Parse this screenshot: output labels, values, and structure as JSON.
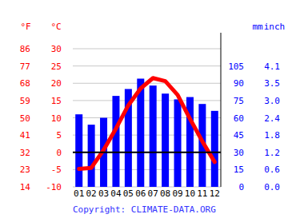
{
  "chart_data": {
    "type": "bar",
    "categories": [
      "01",
      "02",
      "03",
      "04",
      "05",
      "06",
      "07",
      "08",
      "09",
      "10",
      "11",
      "12"
    ],
    "series": [
      {
        "type": "bar",
        "color": "#0000ff",
        "axis": "y2",
        "values": [
          63,
          54,
          60,
          79,
          85,
          94,
          88,
          81,
          76,
          78,
          72,
          66
        ]
      },
      {
        "type": "line",
        "color": "#ff0000",
        "axis": "y",
        "values": [
          -4.8,
          -4.5,
          0.7,
          6.9,
          13.6,
          18.5,
          21.5,
          20.6,
          16.6,
          9.7,
          3.2,
          -2.8
        ]
      }
    ],
    "y_label": "°C",
    "ylim": [
      -10,
      30
    ],
    "yticks": [
      -10,
      -5,
      0,
      5,
      10,
      15,
      20,
      25,
      30
    ],
    "y_fahrenheit_label": "°F",
    "y_fahrenheit_ticks": [
      {
        "value": -10,
        "label": "14"
      },
      {
        "value": -5,
        "label": "23"
      },
      {
        "value": 0,
        "label": "32"
      },
      {
        "value": 5,
        "label": "41"
      },
      {
        "value": 10,
        "label": "50"
      },
      {
        "value": 15,
        "label": "59"
      },
      {
        "value": 20,
        "label": "68"
      },
      {
        "value": 25,
        "label": "77"
      },
      {
        "value": 30,
        "label": "86"
      }
    ],
    "y2_label": "mm",
    "y2lim": [
      0,
      120
    ],
    "y2ticks": [
      0,
      15,
      30,
      45,
      60,
      75,
      90,
      105
    ],
    "y2_inch_label": "inch",
    "y2_inch_ticks": [
      {
        "value": 0,
        "label": "0.0"
      },
      {
        "value": 15,
        "label": "0.6"
      },
      {
        "value": 30,
        "label": "1.2"
      },
      {
        "value": 45,
        "label": "1.8"
      },
      {
        "value": 60,
        "label": "2.4"
      },
      {
        "value": 75,
        "label": "3.0"
      },
      {
        "value": 90,
        "label": "3.5"
      },
      {
        "value": 105,
        "label": "4.1"
      }
    ],
    "source": "Copyright: CLIMATE-DATA.ORG",
    "grid": true
  }
}
